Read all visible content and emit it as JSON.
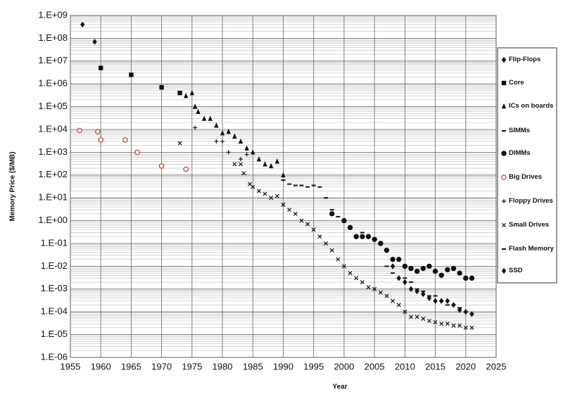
{
  "chart_data": {
    "type": "scatter",
    "x_label": "Year",
    "y_label": "Memory Price ($/MB)",
    "log_y": true,
    "grid": true,
    "legend": "right",
    "xlim": [
      1955,
      2025
    ],
    "xticks": [
      1955,
      1960,
      1965,
      1970,
      1975,
      1980,
      1985,
      1990,
      1995,
      2000,
      2005,
      2010,
      2015,
      2020,
      2025
    ],
    "ylim": [
      1e-06,
      1000000000
    ],
    "yticks": [
      {
        "value": 1e-06,
        "label": "1.E-06"
      },
      {
        "value": 1e-05,
        "label": "1.E-05"
      },
      {
        "value": 0.0001,
        "label": "1.E-04"
      },
      {
        "value": 0.001,
        "label": "1.E-03"
      },
      {
        "value": 0.01,
        "label": "1.E-02"
      },
      {
        "value": 0.1,
        "label": "1.E-01"
      },
      {
        "value": 1,
        "label": "1.E+00"
      },
      {
        "value": 10,
        "label": "1.E+01"
      },
      {
        "value": 100,
        "label": "1.E+02"
      },
      {
        "value": 1000,
        "label": "1.E+03"
      },
      {
        "value": 10000,
        "label": "1.E+04"
      },
      {
        "value": 100000,
        "label": "1.E+05"
      },
      {
        "value": 1000000,
        "label": "1.E+06"
      },
      {
        "value": 10000000,
        "label": "1.E+07"
      },
      {
        "value": 100000000,
        "label": "1.E+08"
      },
      {
        "value": 1000000000,
        "label": "1.E+09"
      }
    ],
    "series": [
      {
        "name": "Flip-Flops",
        "marker": "diamond",
        "color": "#111111",
        "x": [
          1957,
          1959
        ],
        "values": [
          400000000,
          70000000
        ]
      },
      {
        "name": "Core",
        "marker": "square",
        "color": "#111111",
        "x": [
          1960,
          1965,
          1970,
          1973
        ],
        "values": [
          5000000,
          2500000,
          700000,
          400000
        ]
      },
      {
        "name": "ICs on boards",
        "marker": "triangle",
        "color": "#111111",
        "x": [
          1974,
          1975,
          1975.5,
          1976,
          1977,
          1978,
          1979,
          1980,
          1981,
          1982,
          1983,
          1984,
          1985,
          1986,
          1987,
          1988,
          1989,
          1990
        ],
        "values": [
          300000,
          400000,
          100000,
          60000,
          30000,
          30000,
          15000,
          7000,
          8000,
          5000,
          3000,
          1500,
          1000,
          500,
          300,
          250,
          400,
          100
        ]
      },
      {
        "name": "SIMMs",
        "marker": "dash",
        "color": "#111111",
        "x": [
          1990,
          1991,
          1992,
          1993,
          1994,
          1995,
          1996,
          1997,
          1998,
          1999
        ],
        "values": [
          60,
          40,
          35,
          35,
          30,
          35,
          30,
          10,
          3,
          1.5
        ]
      },
      {
        "name": "DIMMs",
        "marker": "circle",
        "color": "#111111",
        "x": [
          1998,
          2000,
          2001,
          2002,
          2003,
          2004,
          2005,
          2006,
          2007,
          2008,
          2009,
          2010,
          2011,
          2012,
          2013,
          2014,
          2015,
          2016,
          2017,
          2018,
          2019,
          2020,
          2021
        ],
        "values": [
          2,
          1,
          0.5,
          0.2,
          0.2,
          0.2,
          0.15,
          0.1,
          0.05,
          0.02,
          0.02,
          0.01,
          0.008,
          0.006,
          0.008,
          0.01,
          0.006,
          0.004,
          0.007,
          0.008,
          0.005,
          0.003,
          0.003
        ]
      },
      {
        "name": "Big Drives",
        "marker": "open-circle",
        "color": "#c0392b",
        "x": [
          1956.5,
          1959.5,
          1960,
          1964,
          1966,
          1970,
          1974
        ],
        "values": [
          9000,
          8000,
          3500,
          3500,
          1000,
          250,
          180
        ]
      },
      {
        "name": "Floppy Drives",
        "marker": "plus",
        "color": "#111111",
        "x": [
          1975.5,
          1979,
          1980,
          1981,
          1983,
          1984
        ],
        "values": [
          12000,
          3000,
          3000,
          1000,
          500,
          800
        ]
      },
      {
        "name": "Small Drives",
        "marker": "cross",
        "color": "#111111",
        "x": [
          1973,
          1982,
          1983,
          1983.5,
          1984.5,
          1985,
          1986,
          1987,
          1988,
          1989,
          1990,
          1991,
          1992,
          1993,
          1994,
          1995,
          1996,
          1997,
          1998,
          1999,
          2000,
          2001,
          2002,
          2003,
          2004,
          2005,
          2006,
          2007,
          2008,
          2009,
          2010,
          2011,
          2012,
          2013,
          2014,
          2015,
          2016,
          2017,
          2018,
          2019,
          2020,
          2021
        ],
        "values": [
          2500,
          300,
          300,
          120,
          40,
          30,
          20,
          15,
          10,
          12,
          5,
          3,
          2,
          1,
          0.7,
          0.4,
          0.2,
          0.1,
          0.05,
          0.02,
          0.01,
          0.005,
          0.003,
          0.002,
          0.0012,
          0.001,
          0.0007,
          0.0005,
          0.0003,
          0.0002,
          0.0001,
          6e-05,
          6e-05,
          5e-05,
          4e-05,
          3.5e-05,
          3e-05,
          3e-05,
          2.5e-05,
          2.5e-05,
          2e-05,
          2e-05
        ]
      },
      {
        "name": "Flash Memory",
        "marker": "dash",
        "color": "#111111",
        "x": [
          2003,
          2005,
          2007,
          2008,
          2010,
          2011,
          2012,
          2013,
          2014,
          2015,
          2016,
          2017,
          2018,
          2019,
          2020,
          2021
        ],
        "values": [
          0.3,
          0.15,
          0.01,
          0.005,
          0.003,
          0.002,
          0.001,
          0.0008,
          0.0005,
          0.0005,
          0.0003,
          0.0002,
          0.0002,
          0.00015,
          0.0001,
          8e-05
        ]
      },
      {
        "name": "SSD",
        "marker": "diamond",
        "color": "#111111",
        "x": [
          2008,
          2009,
          2010,
          2011,
          2012,
          2013,
          2014,
          2015,
          2016,
          2017,
          2018,
          2019,
          2020,
          2021
        ],
        "values": [
          0.01,
          0.003,
          0.002,
          0.001,
          0.0008,
          0.0006,
          0.0004,
          0.0003,
          0.0003,
          0.0003,
          0.0002,
          0.00012,
          0.0001,
          8e-05
        ]
      }
    ]
  }
}
